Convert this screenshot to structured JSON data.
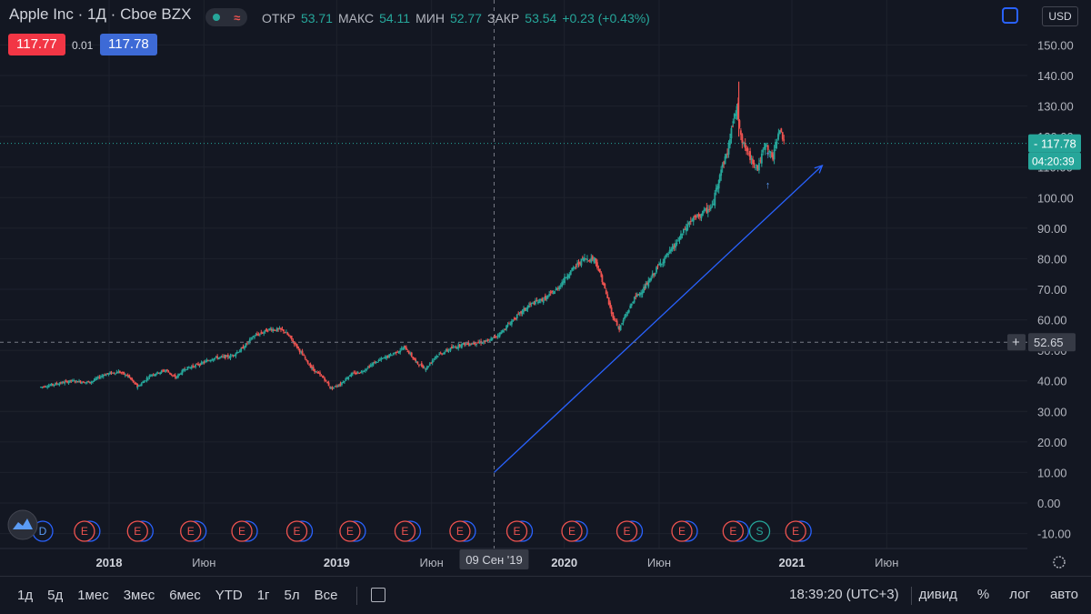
{
  "header": {
    "symbol": "Apple Inc · 1Д · Cboe BZX",
    "ohlc": [
      {
        "label": "ОТКР",
        "value": "53.71"
      },
      {
        "label": "МАКС",
        "value": "54.11"
      },
      {
        "label": "МИН",
        "value": "52.77"
      },
      {
        "label": "ЗАКР",
        "value": "53.54"
      }
    ],
    "change": "+0.23 (+0.43%)",
    "bid": "117.77",
    "spread": "0.01",
    "ask": "117.78",
    "currency": "USD"
  },
  "colors": {
    "bg": "#131722",
    "up": "#26a69a",
    "down": "#ef5350",
    "grid": "#1e222d",
    "accent": "#2962ff",
    "trend": "#2962ff"
  },
  "chart_data": {
    "type": "candlestick",
    "title": "Apple Inc · 1Д · Cboe BZX",
    "y_ticks": [
      "-10.00",
      "0.00",
      "10.00",
      "20.00",
      "30.00",
      "40.00",
      "50.00",
      "60.00",
      "70.00",
      "80.00",
      "90.00",
      "100.00",
      "110.00",
      "120.00",
      "130.00",
      "140.00",
      "150.00"
    ],
    "ylim": [
      -13,
      162
    ],
    "x_ticks": [
      "2018",
      "Июн",
      "2019",
      "Июн",
      "2020",
      "Июн",
      "2021",
      "Июн"
    ],
    "x_tick_months": [
      0,
      5,
      12,
      17,
      24,
      29,
      36,
      41
    ],
    "xlim_months": [
      -3.6,
      44.7
    ],
    "crosshair": {
      "date_label": "09 Сен '19",
      "month": 20.3,
      "price_label": "52.65",
      "price": 52.65
    },
    "last_price": {
      "label": "117.78",
      "value": 117.78,
      "countdown": "04:20:39"
    },
    "close_series": [
      {
        "m": -3.6,
        "v": 38
      },
      {
        "m": -2,
        "v": 40
      },
      {
        "m": -1,
        "v": 39.5
      },
      {
        "m": -0.3,
        "v": 42
      },
      {
        "m": 0.5,
        "v": 43
      },
      {
        "m": 1,
        "v": 41.5
      },
      {
        "m": 1.5,
        "v": 38
      },
      {
        "m": 2.2,
        "v": 42
      },
      {
        "m": 3,
        "v": 43.5
      },
      {
        "m": 3.5,
        "v": 41
      },
      {
        "m": 4,
        "v": 44
      },
      {
        "m": 4.8,
        "v": 45.5
      },
      {
        "m": 5.5,
        "v": 47.5
      },
      {
        "m": 6.4,
        "v": 48
      },
      {
        "m": 7,
        "v": 50.5
      },
      {
        "m": 7.6,
        "v": 54.5
      },
      {
        "m": 8.5,
        "v": 57
      },
      {
        "m": 9.2,
        "v": 56.5
      },
      {
        "m": 9.7,
        "v": 53
      },
      {
        "m": 10.2,
        "v": 48.5
      },
      {
        "m": 10.7,
        "v": 44
      },
      {
        "m": 11.3,
        "v": 41
      },
      {
        "m": 11.7,
        "v": 37.5
      },
      {
        "m": 12.2,
        "v": 39
      },
      {
        "m": 12.7,
        "v": 42
      },
      {
        "m": 13.3,
        "v": 43
      },
      {
        "m": 14,
        "v": 46
      },
      {
        "m": 15,
        "v": 49
      },
      {
        "m": 15.6,
        "v": 51
      },
      {
        "m": 16.2,
        "v": 46
      },
      {
        "m": 16.7,
        "v": 44
      },
      {
        "m": 17.2,
        "v": 48
      },
      {
        "m": 18,
        "v": 50.5
      },
      {
        "m": 18.6,
        "v": 52
      },
      {
        "m": 19.4,
        "v": 52.5
      },
      {
        "m": 20,
        "v": 53
      },
      {
        "m": 20.6,
        "v": 55.5
      },
      {
        "m": 21.3,
        "v": 60
      },
      {
        "m": 22.2,
        "v": 65
      },
      {
        "m": 23,
        "v": 67
      },
      {
        "m": 23.6,
        "v": 70
      },
      {
        "m": 24.2,
        "v": 75
      },
      {
        "m": 25,
        "v": 80
      },
      {
        "m": 25.6,
        "v": 80
      },
      {
        "m": 26,
        "v": 73
      },
      {
        "m": 26.5,
        "v": 62
      },
      {
        "m": 26.9,
        "v": 57
      },
      {
        "m": 27.2,
        "v": 61
      },
      {
        "m": 27.7,
        "v": 67
      },
      {
        "m": 28.3,
        "v": 71
      },
      {
        "m": 29,
        "v": 78
      },
      {
        "m": 29.8,
        "v": 84
      },
      {
        "m": 30.6,
        "v": 92
      },
      {
        "m": 31.3,
        "v": 95
      },
      {
        "m": 31.8,
        "v": 97
      },
      {
        "m": 32.2,
        "v": 108
      },
      {
        "m": 32.6,
        "v": 115
      },
      {
        "m": 32.9,
        "v": 125
      },
      {
        "m": 33.1,
        "v": 129
      },
      {
        "m": 33.4,
        "v": 118
      },
      {
        "m": 33.8,
        "v": 113
      },
      {
        "m": 34.2,
        "v": 110
      },
      {
        "m": 34.6,
        "v": 117
      },
      {
        "m": 35,
        "v": 113
      },
      {
        "m": 35.3,
        "v": 122
      },
      {
        "m": 35.6,
        "v": 119
      }
    ],
    "trendline": {
      "from": {
        "m": 20.3,
        "v": 10
      },
      "to": {
        "m": 37.6,
        "v": 110.5
      }
    },
    "event_markers": [
      {
        "m": -3.5,
        "label": "D"
      },
      {
        "m": -1.3,
        "label": "E"
      },
      {
        "m": 1.5,
        "label": "E"
      },
      {
        "m": 4.3,
        "label": "E"
      },
      {
        "m": 7,
        "label": "E"
      },
      {
        "m": 9.9,
        "label": "E"
      },
      {
        "m": 12.7,
        "label": "E"
      },
      {
        "m": 15.6,
        "label": "E"
      },
      {
        "m": 18.5,
        "label": "E"
      },
      {
        "m": 21.5,
        "label": "E"
      },
      {
        "m": 24.4,
        "label": "E"
      },
      {
        "m": 27.3,
        "label": "E"
      },
      {
        "m": 30.2,
        "label": "E"
      },
      {
        "m": 32.9,
        "label": "E"
      },
      {
        "m": 34.3,
        "label": "S"
      },
      {
        "m": 36.2,
        "label": "E"
      }
    ]
  },
  "bottom": {
    "timeframes": [
      "1д",
      "5д",
      "1мес",
      "3мес",
      "6мес",
      "YTD",
      "1г",
      "5л",
      "Все"
    ],
    "clock": "18:39:20 (UTC+3)",
    "right_buttons": [
      "дивид",
      "%",
      "лог",
      "авто"
    ]
  }
}
